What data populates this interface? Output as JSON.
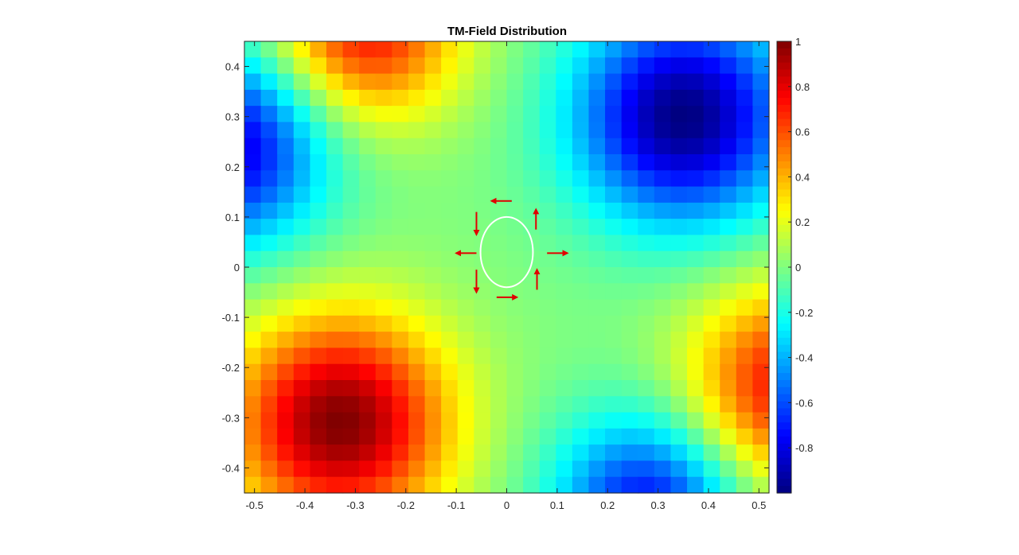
{
  "chart_data": {
    "type": "heatmap",
    "title": "TM-Field Distribution",
    "xlabel": "",
    "ylabel": "",
    "xlim": [
      -0.52,
      0.52
    ],
    "ylim": [
      -0.45,
      0.45
    ],
    "xticks": [
      "-0.5",
      "-0.4",
      "-0.3",
      "-0.2",
      "-0.1",
      "0",
      "0.1",
      "0.2",
      "0.3",
      "0.4",
      "0.5"
    ],
    "yticks": [
      "0.4",
      "0.3",
      "0.2",
      "0.1",
      "0",
      "-0.1",
      "-0.2",
      "-0.3",
      "-0.4"
    ],
    "colorbar": {
      "colormap": "jet",
      "range": [
        -1,
        1
      ],
      "ticks": [
        "1",
        "0.8",
        "0.6",
        "0.4",
        "0.2",
        "0",
        "-0.2",
        "-0.4",
        "-0.6",
        "-0.8"
      ]
    },
    "grid": false,
    "field": {
      "description_of_peaks": "positive extrema at lower-left (~-0.33,-0.31, value ~1) and lower-right (~0.5,-0.2, value ~0.6); negative extrema at upper-right (~0.35,0.3, value ~-1) and upper-left (~-0.5,0.25, value ~-0.7); near zero along x=0 and y=0",
      "grid_cols": 32,
      "grid_rows": 28
    },
    "overlay": {
      "circle": {
        "cx": 0.0,
        "cy": 0.03,
        "rx": 0.052,
        "ry": 0.07,
        "color": "#ffffff"
      },
      "arrows": [
        {
          "x": 0.01,
          "y": 0.132,
          "dx": -0.04,
          "dy": 0.0
        },
        {
          "x": 0.058,
          "y": 0.075,
          "dx": 0.0,
          "dy": 0.04
        },
        {
          "x": 0.08,
          "y": 0.028,
          "dx": 0.04,
          "dy": 0.0
        },
        {
          "x": 0.06,
          "y": -0.045,
          "dx": 0.0,
          "dy": 0.04
        },
        {
          "x": -0.02,
          "y": -0.06,
          "dx": 0.04,
          "dy": 0.0
        },
        {
          "x": -0.06,
          "y": -0.005,
          "dx": 0.0,
          "dy": -0.045
        },
        {
          "x": -0.06,
          "y": 0.11,
          "dx": 0.0,
          "dy": -0.045
        },
        {
          "x": -0.06,
          "y": 0.028,
          "dx": -0.04,
          "dy": 0.0
        }
      ],
      "arrow_color": "#e00000"
    }
  }
}
